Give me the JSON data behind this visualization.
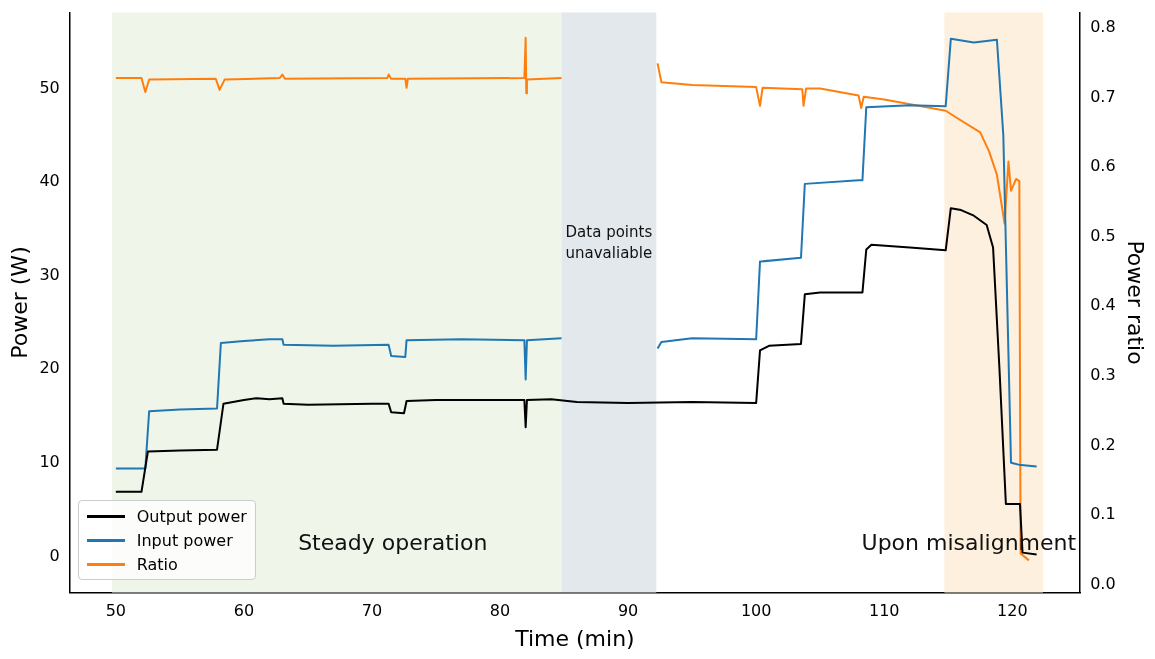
{
  "chart_data": {
    "type": "line",
    "xlabel": "Time (min)",
    "ylabel": "Power (W)",
    "y2label": "Power ratio",
    "xlim": [
      46.4,
      125.3
    ],
    "xticks": [
      50,
      60,
      70,
      80,
      90,
      100,
      110,
      120
    ],
    "ylim": [
      -3.85,
      58.1
    ],
    "yticks": [
      0,
      10,
      20,
      30,
      40,
      50
    ],
    "y2lim": [
      -0.011,
      0.822
    ],
    "y2ticks": [
      {
        "value": 0,
        "label": "0.0"
      },
      0.1,
      0.2,
      0.3,
      0.4,
      0.5,
      0.6,
      0.7,
      0.8
    ],
    "grid": false,
    "legend": "bottom left",
    "marker": "none",
    "line_style": "solid",
    "bands": [
      {
        "axis": "x",
        "from": 49.7,
        "to": 84.8,
        "label": "Steady operation",
        "color": "#eff5e9"
      },
      {
        "axis": "x",
        "from": 84.8,
        "to": 92.2,
        "label": "Data points unavaliable",
        "color": "#e3e8ed"
      },
      {
        "axis": "x",
        "from": 114.7,
        "to": 122.4,
        "label": "Upon misalignment",
        "color": "#fdf0de"
      }
    ],
    "series": [
      {
        "name": "Output power",
        "color": "#000000",
        "x": [
          50,
          52,
          52.5,
          55,
          57.9,
          58.4,
          60,
          61,
          62,
          63,
          63.1,
          65,
          70,
          71.3,
          71.5,
          72.5,
          72.7,
          75,
          80,
          81.9,
          82,
          82.1,
          84,
          86,
          90,
          95,
          100,
          100.3,
          101,
          103.5,
          103.8,
          105,
          108.3,
          108.6,
          109,
          112,
          114.8,
          115.2,
          116,
          117,
          118,
          118.5,
          119,
          119.5,
          120.6,
          120.8,
          121.9
        ],
        "values": [
          6.9,
          6.9,
          11.2,
          11.3,
          11.4,
          16.3,
          16.7,
          16.9,
          16.8,
          16.9,
          16.3,
          16.2,
          16.3,
          16.3,
          15.4,
          15.3,
          16.6,
          16.7,
          16.7,
          16.7,
          13.8,
          16.7,
          16.8,
          16.5,
          16.4,
          16.5,
          16.4,
          22.0,
          22.5,
          22.7,
          28.0,
          28.2,
          28.2,
          32.8,
          33.3,
          33.0,
          32.7,
          37.2,
          37.0,
          36.4,
          35.4,
          33.0,
          20.0,
          5.6,
          5.6,
          0.4,
          0.2
        ]
      },
      {
        "name": "Input power",
        "color": "#1f77b4",
        "x": [
          50,
          52.3,
          52.6,
          55,
          57.9,
          58.2,
          60,
          62,
          63,
          63.1,
          67,
          71.3,
          71.5,
          72.6,
          72.7,
          77,
          81.9,
          82,
          82.1,
          84.8,
          84.9,
          92.3,
          92.6,
          95,
          100,
          100.3,
          103.5,
          103.8,
          108,
          108.3,
          108.6,
          112,
          114.8,
          115.2,
          117,
          118.8,
          119.3,
          119.9,
          120.5,
          121.9
        ],
        "values": [
          9.4,
          9.4,
          15.5,
          15.7,
          15.8,
          22.8,
          23.0,
          23.2,
          23.2,
          22.6,
          22.5,
          22.6,
          21.4,
          21.3,
          23.1,
          23.2,
          23.1,
          18.9,
          23.1,
          23.3,
          null,
          22.2,
          22.9,
          23.3,
          23.2,
          31.5,
          31.9,
          39.8,
          40.2,
          40.2,
          48.0,
          48.2,
          48.1,
          55.3,
          54.9,
          55.2,
          45.0,
          10.0,
          9.8,
          9.6
        ]
      },
      {
        "name": "Ratio",
        "color": "#ff7f0e",
        "axis": "y2",
        "x": [
          50,
          52,
          52.3,
          52.6,
          57.8,
          58.1,
          58.5,
          62.8,
          63,
          63.2,
          71.2,
          71.3,
          71.5,
          72.6,
          72.7,
          72.8,
          81.9,
          82,
          82.05,
          82.1,
          84.8,
          84.9,
          92.3,
          92.6,
          95,
          100,
          100.3,
          100.5,
          103.6,
          103.7,
          103.9,
          105,
          108,
          108.2,
          108.4,
          110,
          114.8,
          116,
          117.5,
          118.2,
          118.8,
          119.4,
          119.7,
          119.9,
          120.3,
          120.55,
          120.65,
          121.3
        ],
        "values": [
          0.728,
          0.728,
          0.708,
          0.726,
          0.727,
          0.711,
          0.726,
          0.728,
          0.733,
          0.727,
          0.728,
          0.733,
          0.727,
          0.727,
          0.714,
          0.727,
          0.728,
          0.786,
          0.706,
          0.726,
          0.728,
          null,
          0.749,
          0.722,
          0.718,
          0.715,
          0.688,
          0.714,
          0.712,
          0.688,
          0.713,
          0.713,
          0.703,
          0.685,
          0.701,
          0.697,
          0.681,
          0.667,
          0.65,
          0.622,
          0.589,
          0.519,
          0.608,
          0.566,
          0.583,
          0.58,
          0.045,
          0.035
        ]
      }
    ]
  }
}
